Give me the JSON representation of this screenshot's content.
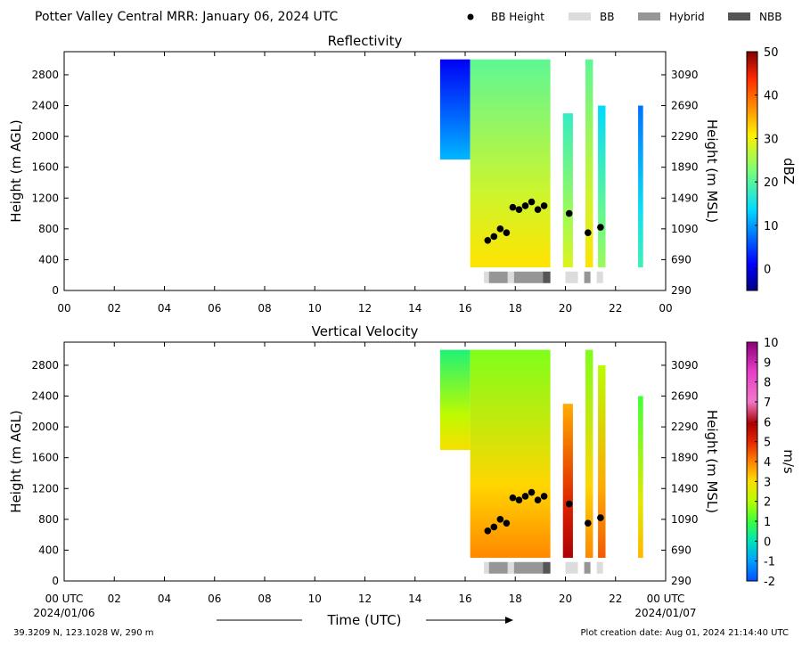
{
  "header": {
    "title": "Potter Valley Central MRR:  January 06, 2024 UTC",
    "legend": [
      {
        "label": "BB Height",
        "kind": "dot",
        "color": "#000000"
      },
      {
        "label": "BB",
        "kind": "box",
        "color": "#dcdcdc"
      },
      {
        "label": "Hybrid",
        "kind": "box",
        "color": "#969696"
      },
      {
        "label": "NBB",
        "kind": "box",
        "color": "#555555"
      }
    ]
  },
  "footer": {
    "location": "39.3209 N, 123.1028 W, 290 m",
    "creation": "Plot creation date: Aug 01, 2024 21:14:40 UTC",
    "xlabel": "Time (UTC)",
    "start_label": "00 UTC",
    "start_date": "2024/01/06",
    "end_label": "00 UTC",
    "end_date": "2024/01/07"
  },
  "chart_data": [
    {
      "type": "heatmap",
      "title": "Reflectivity",
      "ylabel": "Height (m AGL)",
      "y2label": "Height (m MSL)",
      "xlim": [
        0,
        24
      ],
      "ylim": [
        0,
        3100
      ],
      "x_ticks": [
        "00",
        "02",
        "04",
        "06",
        "08",
        "10",
        "12",
        "14",
        "16",
        "18",
        "20",
        "22",
        "00"
      ],
      "y_ticks": [
        0,
        400,
        800,
        1200,
        1600,
        2000,
        2400,
        2800
      ],
      "y2_ticks": [
        290,
        690,
        1090,
        1490,
        1890,
        2290,
        2690,
        3090
      ],
      "colorbar": {
        "label": "dBZ",
        "min": -5,
        "max": 50,
        "ticks": [
          0,
          10,
          20,
          30,
          40,
          50
        ]
      },
      "colormap": "jet",
      "echo_segments": [
        {
          "start": 15.0,
          "end": 16.2,
          "top": 3000,
          "base": 1700,
          "value": 5
        },
        {
          "start": 16.2,
          "end": 19.4,
          "top": 3000,
          "base": 300,
          "value": 25
        },
        {
          "start": 19.9,
          "end": 20.3,
          "top": 2300,
          "base": 300,
          "value": 22
        },
        {
          "start": 20.8,
          "end": 21.1,
          "top": 3000,
          "base": 300,
          "value": 25
        },
        {
          "start": 21.3,
          "end": 21.6,
          "top": 2400,
          "base": 300,
          "value": 18
        },
        {
          "start": 22.9,
          "end": 23.1,
          "top": 2400,
          "base": 300,
          "value": 12
        }
      ],
      "bb_height": {
        "x": [
          16.9,
          17.15,
          17.4,
          17.65,
          17.9,
          18.15,
          18.4,
          18.65,
          18.9,
          19.15,
          20.15,
          20.9,
          21.4
        ],
        "y": [
          650,
          700,
          800,
          750,
          1080,
          1050,
          1100,
          1150,
          1050,
          1100,
          1000,
          750,
          820
        ]
      },
      "bb_type": [
        {
          "start": 16.75,
          "end": 16.95,
          "type": "BB"
        },
        {
          "start": 16.95,
          "end": 17.7,
          "type": "Hybrid"
        },
        {
          "start": 17.7,
          "end": 17.95,
          "type": "BB"
        },
        {
          "start": 17.95,
          "end": 19.1,
          "type": "Hybrid"
        },
        {
          "start": 19.1,
          "end": 19.4,
          "type": "NBB"
        },
        {
          "start": 20.0,
          "end": 20.5,
          "type": "BB"
        },
        {
          "start": 20.75,
          "end": 21.0,
          "type": "Hybrid"
        },
        {
          "start": 21.25,
          "end": 21.5,
          "type": "BB"
        }
      ]
    },
    {
      "type": "heatmap",
      "title": "Vertical Velocity",
      "ylabel": "Height (m AGL)",
      "y2label": "Height (m MSL)",
      "xlim": [
        0,
        24
      ],
      "ylim": [
        0,
        3100
      ],
      "x_ticks": [
        "",
        "02",
        "04",
        "06",
        "08",
        "10",
        "12",
        "14",
        "16",
        "18",
        "20",
        "22",
        ""
      ],
      "y_ticks": [
        0,
        400,
        800,
        1200,
        1600,
        2000,
        2400,
        2800
      ],
      "y2_ticks": [
        290,
        690,
        1090,
        1490,
        1890,
        2290,
        2690,
        3090
      ],
      "colorbar": {
        "label": "m/s",
        "min": -2,
        "max": 10,
        "ticks": [
          -2,
          -1,
          0,
          1,
          2,
          3,
          4,
          5,
          6,
          7,
          8,
          9,
          10
        ]
      },
      "colormap": "velocity",
      "echo_segments": [
        {
          "start": 15.0,
          "end": 16.2,
          "top": 3000,
          "base": 1700,
          "value": 1.5
        },
        {
          "start": 16.2,
          "end": 19.4,
          "top": 3000,
          "base": 300,
          "value": 2.5
        },
        {
          "start": 19.9,
          "end": 20.3,
          "top": 2300,
          "base": 300,
          "value": 4.5
        },
        {
          "start": 20.8,
          "end": 21.1,
          "top": 3000,
          "base": 300,
          "value": 2.5
        },
        {
          "start": 21.3,
          "end": 21.6,
          "top": 2800,
          "base": 300,
          "value": 3
        },
        {
          "start": 22.9,
          "end": 23.1,
          "top": 2400,
          "base": 300,
          "value": 2
        }
      ],
      "bb_height": {
        "x": [
          16.9,
          17.15,
          17.4,
          17.65,
          17.9,
          18.15,
          18.4,
          18.65,
          18.9,
          19.15,
          20.15,
          20.9,
          21.4
        ],
        "y": [
          650,
          700,
          800,
          750,
          1080,
          1050,
          1100,
          1150,
          1050,
          1100,
          1000,
          750,
          820
        ]
      },
      "bb_type": [
        {
          "start": 16.75,
          "end": 16.95,
          "type": "BB"
        },
        {
          "start": 16.95,
          "end": 17.7,
          "type": "Hybrid"
        },
        {
          "start": 17.7,
          "end": 17.95,
          "type": "BB"
        },
        {
          "start": 17.95,
          "end": 19.1,
          "type": "Hybrid"
        },
        {
          "start": 19.1,
          "end": 19.4,
          "type": "NBB"
        },
        {
          "start": 20.0,
          "end": 20.5,
          "type": "BB"
        },
        {
          "start": 20.75,
          "end": 21.0,
          "type": "Hybrid"
        },
        {
          "start": 21.25,
          "end": 21.5,
          "type": "BB"
        }
      ]
    }
  ]
}
